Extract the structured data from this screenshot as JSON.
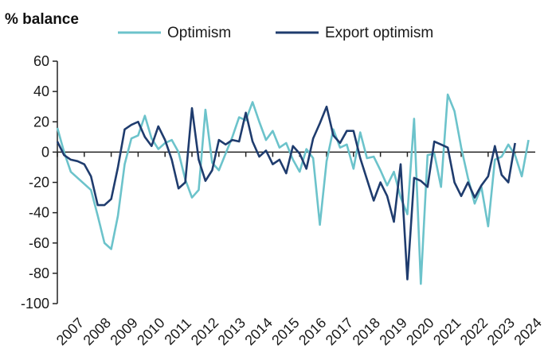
{
  "chart_data": {
    "type": "line",
    "title": "",
    "ylabel": "% balance",
    "xlabel": "",
    "ylim": [
      -100,
      60
    ],
    "yticks": [
      60,
      40,
      20,
      0,
      -20,
      -40,
      -60,
      -80,
      -100
    ],
    "ytick_labels": [
      "60",
      "40",
      "20",
      "0",
      "-20",
      "-40",
      "-60",
      "-80",
      "-100"
    ],
    "xlim": [
      2007,
      2024.75
    ],
    "xtick_labels": [
      "2007",
      "2008",
      "2009",
      "2010",
      "2011",
      "2012",
      "2013",
      "2014",
      "2015",
      "2016",
      "2017",
      "2018",
      "2019",
      "2020",
      "2021",
      "2022",
      "2023",
      "2024"
    ],
    "x_start": 2007,
    "x_step": 0.25,
    "legend_position": "top",
    "series": [
      {
        "name": "Optimism",
        "color": "#6cc3cb",
        "values": [
          16,
          0,
          -13,
          -17,
          -21,
          -25,
          -42,
          -60,
          -64,
          -42,
          -8,
          9,
          11,
          24,
          9,
          2,
          6,
          8,
          0,
          -18,
          -30,
          -25,
          28,
          -7,
          -12,
          -1,
          10,
          23,
          21,
          33,
          20,
          8,
          14,
          3,
          6,
          -5,
          -13,
          2,
          -4,
          -48,
          -6,
          15,
          3,
          5,
          -11,
          13,
          -4,
          -3,
          -12,
          -22,
          -13,
          -30,
          -41,
          22,
          -87,
          -2,
          -1,
          -23,
          38,
          27,
          3,
          -17,
          -34,
          -23,
          -49,
          -5,
          -3,
          5,
          -2,
          -16,
          8
        ],
        "values_2": null
      },
      {
        "name": "Export optimism",
        "color": "#1f3c6e",
        "values": [
          7,
          -2,
          -5,
          -6,
          -8,
          -16,
          -35,
          -35,
          -31,
          -10,
          15,
          18,
          20,
          10,
          4,
          17,
          8,
          -5,
          -24,
          -20,
          29,
          -5,
          -19,
          -12,
          8,
          5,
          8,
          7,
          26,
          7,
          -3,
          1,
          -8,
          -5,
          -14,
          4,
          -1,
          -11,
          9,
          19,
          30,
          11,
          6,
          14,
          14,
          -4,
          -18,
          -32,
          -20,
          -29,
          -46,
          -8,
          -84,
          -17,
          -19,
          -23,
          7,
          5,
          3,
          -20,
          -29,
          -20,
          -30,
          -22,
          -16,
          4,
          -15,
          -20,
          6
        ],
        "values_2": null
      }
    ]
  }
}
